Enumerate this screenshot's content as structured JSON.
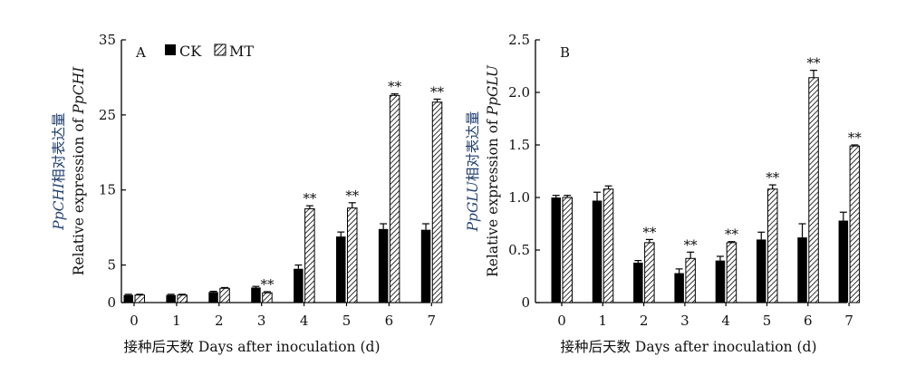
{
  "chart_data": [
    {
      "panel": "A",
      "type": "bar",
      "categories": [
        "0",
        "1",
        "2",
        "3",
        "4",
        "5",
        "6",
        "7"
      ],
      "series": [
        {
          "name": "CK",
          "values": [
            1.0,
            1.0,
            1.4,
            2.0,
            4.5,
            8.8,
            9.8,
            9.7
          ],
          "errors": [
            0.1,
            0.1,
            0.1,
            0.15,
            0.5,
            0.6,
            0.7,
            0.8
          ]
        },
        {
          "name": "MT",
          "values": [
            1.0,
            1.0,
            1.9,
            1.3,
            12.5,
            12.6,
            27.6,
            26.7
          ],
          "errors": [
            0.1,
            0.1,
            0.1,
            0.15,
            0.4,
            0.7,
            0.2,
            0.4
          ]
        }
      ],
      "significance": [
        "",
        "",
        "",
        "**",
        "**",
        "**",
        "**",
        "**"
      ],
      "ylim": [
        0,
        35
      ],
      "yticks": [
        "0",
        "5",
        "15",
        "25",
        "35"
      ],
      "xlabel": "接种后天数 Days after inoculation (d)",
      "ylabel_cn_gene": "PpCHI",
      "ylabel_cn_suffix": "相对表达量",
      "ylabel_en_prefix": "Relative expression of ",
      "ylabel_en_gene": "PpCHI",
      "legend_position": "top"
    },
    {
      "panel": "B",
      "type": "bar",
      "categories": [
        "0",
        "1",
        "2",
        "3",
        "4",
        "5",
        "6",
        "7"
      ],
      "series": [
        {
          "name": "CK",
          "values": [
            1.0,
            0.97,
            0.38,
            0.28,
            0.4,
            0.6,
            0.62,
            0.78
          ],
          "errors": [
            0.02,
            0.08,
            0.02,
            0.04,
            0.04,
            0.07,
            0.13,
            0.08
          ]
        },
        {
          "name": "MT",
          "values": [
            1.0,
            1.08,
            0.57,
            0.42,
            0.57,
            1.08,
            2.14,
            1.49
          ],
          "errors": [
            0.02,
            0.03,
            0.03,
            0.06,
            0.01,
            0.04,
            0.07,
            0.01
          ]
        }
      ],
      "significance": [
        "",
        "",
        "**",
        "**",
        "**",
        "**",
        "**",
        "**"
      ],
      "ylim": [
        0,
        2.5
      ],
      "yticks": [
        "0",
        "0.5",
        "1.0",
        "1.5",
        "2.0",
        "2.5"
      ],
      "xlabel": "接种后天数 Days after inoculation (d)",
      "ylabel_cn_gene": "PpGLU",
      "ylabel_cn_suffix": "相对表达量",
      "ylabel_en_prefix": "Relative expression of ",
      "ylabel_en_gene": "PpGLU"
    }
  ],
  "colors": {
    "ck": "#000000",
    "mt_hatch": "#000000",
    "axis": "#000000",
    "ylabel_cn": "#1f3f6f"
  }
}
